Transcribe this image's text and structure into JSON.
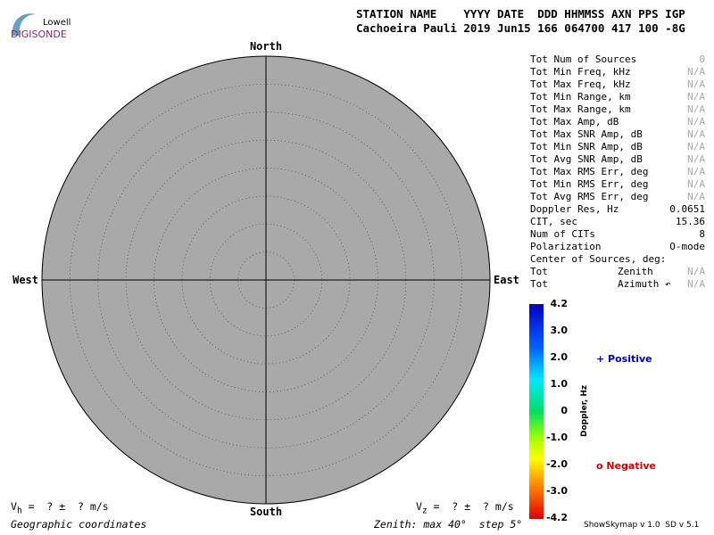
{
  "logo": {
    "top": "Lowell",
    "bottom": "DIGISONDE"
  },
  "header": {
    "columns": "STATION NAME    YYYY DATE  DDD HHMMSS AXN PPS IGP",
    "values": "Cachoeira Pauli 2019 Jun15 166 064700 417 100 -8G"
  },
  "skymap": {
    "north": "North",
    "south": "South",
    "west": "West",
    "east": "East"
  },
  "stats": [
    [
      "Tot Num of Sources",
      "0"
    ],
    [
      "Tot Min Freq, kHz",
      "N/A"
    ],
    [
      "Tot Max Freq, kHz",
      "N/A"
    ],
    [
      "Tot Min Range, km",
      "N/A"
    ],
    [
      "Tot Max Range, km",
      "N/A"
    ],
    [
      "Tot Max Amp, dB",
      "N/A"
    ],
    [
      "Tot Max SNR Amp, dB",
      "N/A"
    ],
    [
      "Tot Min SNR Amp, dB",
      "N/A"
    ],
    [
      "Tot Avg SNR Amp, dB",
      "N/A"
    ],
    [
      "Tot Max RMS Err, deg",
      "N/A"
    ],
    [
      "Tot Min RMS Err, deg",
      "N/A"
    ],
    [
      "Tot Avg RMS Err, deg",
      "N/A"
    ],
    [
      "Doppler Res, Hz",
      "0.0651"
    ],
    [
      "CIT, sec",
      "15.36"
    ],
    [
      "Num of CITs",
      "8"
    ],
    [
      "Polarization",
      "O-mode"
    ]
  ],
  "center": {
    "title": "Center of Sources, deg:",
    "rows": [
      [
        "Tot",
        "Zenith",
        "N/A"
      ],
      [
        "Tot",
        "Azimuth ↶",
        "N/A"
      ]
    ]
  },
  "colorbar": {
    "title": "Doppler, Hz",
    "ticks": [
      "4.2",
      "3.0",
      "2.0",
      "1.0",
      "0",
      "-1.0",
      "-2.0",
      "-3.0",
      "-4.2"
    ]
  },
  "legend": {
    "positive": "+ Positive",
    "negative": "o Negative"
  },
  "velocity": {
    "vh": {
      "symbol": "V",
      "subscript": "h",
      "text": "=  ? ±  ? m/s"
    },
    "vz": {
      "symbol": "V",
      "subscript": "z",
      "text": "=  ? ±  ? m/s"
    }
  },
  "footer": {
    "coordinates": "Geographic coordinates",
    "zenith": "Zenith: max 40°  step 5°",
    "version": "ShowSkymap v 1.0  SD v 5.1"
  }
}
